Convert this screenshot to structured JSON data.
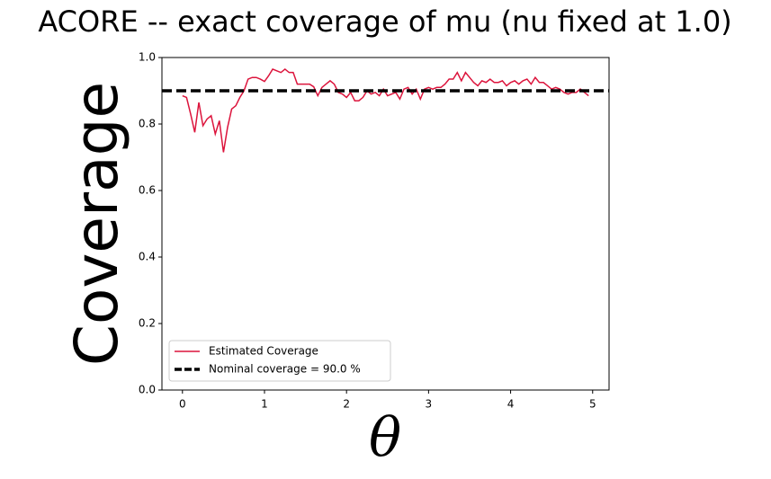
{
  "chart_data": {
    "type": "line",
    "title": "ACORE -- exact coverage of mu (nu fixed at 1.0)",
    "x_label": "θ",
    "y_label": "Coverage",
    "x": [
      0,
      0.05,
      0.1,
      0.15,
      0.2,
      0.25,
      0.3,
      0.35,
      0.4,
      0.45,
      0.5,
      0.55,
      0.6,
      0.65,
      0.7,
      0.75,
      0.8,
      0.85,
      0.9,
      0.95,
      1.0,
      1.05,
      1.1,
      1.15,
      1.2,
      1.25,
      1.3,
      1.35,
      1.4,
      1.45,
      1.5,
      1.55,
      1.6,
      1.65,
      1.7,
      1.75,
      1.8,
      1.85,
      1.9,
      1.95,
      2.0,
      2.05,
      2.1,
      2.15,
      2.2,
      2.25,
      2.3,
      2.35,
      2.4,
      2.45,
      2.5,
      2.55,
      2.6,
      2.65,
      2.7,
      2.75,
      2.8,
      2.85,
      2.9,
      2.95,
      3.0,
      3.05,
      3.1,
      3.15,
      3.2,
      3.25,
      3.3,
      3.35,
      3.4,
      3.45,
      3.5,
      3.55,
      3.6,
      3.65,
      3.7,
      3.75,
      3.8,
      3.85,
      3.9,
      3.95,
      4.0,
      4.05,
      4.1,
      4.15,
      4.2,
      4.25,
      4.3,
      4.35,
      4.4,
      4.45,
      4.5,
      4.55,
      4.6,
      4.65,
      4.7,
      4.75,
      4.8,
      4.85,
      4.9,
      4.95
    ],
    "series": [
      {
        "name": "Estimated Coverage",
        "color": "#dc143c",
        "values": [
          0.885,
          0.88,
          0.83,
          0.775,
          0.865,
          0.795,
          0.815,
          0.825,
          0.77,
          0.81,
          0.715,
          0.79,
          0.845,
          0.855,
          0.88,
          0.9,
          0.935,
          0.94,
          0.94,
          0.935,
          0.928,
          0.945,
          0.965,
          0.96,
          0.955,
          0.965,
          0.955,
          0.955,
          0.92,
          0.92,
          0.92,
          0.92,
          0.912,
          0.885,
          0.91,
          0.92,
          0.93,
          0.92,
          0.895,
          0.89,
          0.88,
          0.895,
          0.87,
          0.87,
          0.88,
          0.9,
          0.89,
          0.895,
          0.885,
          0.905,
          0.885,
          0.89,
          0.895,
          0.875,
          0.905,
          0.91,
          0.89,
          0.905,
          0.875,
          0.905,
          0.91,
          0.905,
          0.91,
          0.91,
          0.92,
          0.935,
          0.935,
          0.955,
          0.93,
          0.955,
          0.94,
          0.925,
          0.915,
          0.93,
          0.925,
          0.935,
          0.925,
          0.925,
          0.93,
          0.915,
          0.925,
          0.93,
          0.92,
          0.93,
          0.935,
          0.92,
          0.94,
          0.925,
          0.925,
          0.915,
          0.905,
          0.91,
          0.905,
          0.895,
          0.89,
          0.895,
          0.895,
          0.905,
          0.895,
          0.885
        ]
      }
    ],
    "hlines": [
      {
        "name": "Nominal coverage = 90.0 %",
        "value": 0.9,
        "color": "#000000",
        "dashed": true
      }
    ],
    "xlim": [
      -0.25,
      5.2
    ],
    "ylim": [
      0,
      1
    ],
    "xticks": [
      0,
      1,
      2,
      3,
      4,
      5
    ],
    "yticks": [
      {
        "value": 0,
        "label": "0.0"
      },
      0.2,
      0.4,
      0.6,
      0.8,
      {
        "value": 1,
        "label": "1.0"
      }
    ],
    "legend": "lower left"
  }
}
